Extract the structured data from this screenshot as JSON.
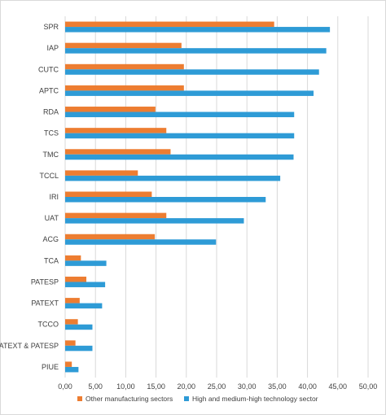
{
  "chart_data": {
    "type": "bar",
    "orientation": "horizontal",
    "categories": [
      "SPR",
      "IAP",
      "CUTC",
      "APTC",
      "RDA",
      "TCS",
      "TMC",
      "TCCL",
      "IRI",
      "UAT",
      "ACG",
      "TCA",
      "PATESP",
      "PATEXT",
      "TCCO",
      "PATEXT & PATESP",
      "PIUE"
    ],
    "series": [
      {
        "name": "Other manufacturing sectors",
        "color": "#ED7D31",
        "values": [
          34.5,
          19.2,
          19.6,
          19.6,
          14.9,
          16.7,
          17.4,
          12.0,
          14.3,
          16.7,
          14.8,
          2.6,
          3.5,
          2.4,
          2.1,
          1.7,
          1.1
        ]
      },
      {
        "name": "High and medium-high technology sector",
        "color": "#2E9BD6",
        "values": [
          43.7,
          43.1,
          41.9,
          41.0,
          37.8,
          37.8,
          37.7,
          35.5,
          33.1,
          29.5,
          24.9,
          6.8,
          6.6,
          6.1,
          4.5,
          4.5,
          2.2
        ]
      }
    ],
    "xlim": [
      0,
      50
    ],
    "xticks": [
      0,
      5,
      10,
      15,
      20,
      25,
      30,
      35,
      40,
      45,
      50
    ],
    "xtick_labels": [
      "0,00",
      "5,00",
      "10,00",
      "15,00",
      "20,00",
      "25,00",
      "30,00",
      "35,00",
      "40,00",
      "45,00",
      "50,00"
    ],
    "grid": true,
    "legend_position": "bottom"
  }
}
